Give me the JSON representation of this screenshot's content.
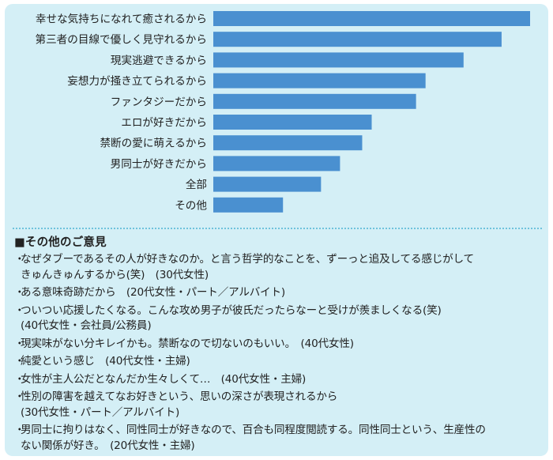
{
  "chart_data": {
    "type": "bar",
    "orientation": "horizontal",
    "categories": [
      "幸せな気持ちになれて癒されるから",
      "第三者の目線で優しく見守れるから",
      "現実逃避できるから",
      "妄想力が掻き立てられるから",
      "ファンタジーだから",
      "エロが好きだから",
      "禁断の愛に萌えるから",
      "男同士が好きだから",
      "全部",
      "その他"
    ],
    "values": [
      100,
      91,
      79,
      67,
      64,
      50,
      47,
      40,
      34,
      22
    ],
    "xlim": [
      0,
      100
    ],
    "bar_color": "#4a90d0",
    "grid": false,
    "legend": "none"
  },
  "opinions": {
    "title": "■その他のご意見",
    "bullet": "・",
    "items": [
      "なぜタブーであるその人が好きなのか。と言う哲学的なことを、ずーっと追及してる感じがして\nきゅんきゅんするから(笑)　(30代女性)",
      "ある意味奇跡だから　(20代女性・パート／アルバイト)",
      "ついつい応援したくなる。こんな攻め男子が彼氏だったらなーと受けが羨ましくなる(笑)\n(40代女性・会社員/公務員)",
      "現実味がない分キレイかも。禁断なので切ないのもいい。　(40代女性)",
      "純愛という感じ　(40代女性・主婦)",
      "女性が主人公だとなんだか生々しくて…　(40代女性・主婦)",
      "性別の障害を越えてなお好きという、思いの深さが表現されるから\n(30代女性・パート／アルバイト)",
      "男同士に拘りはなく、同性同士が好きなので、百合も同程度閲読する。同性同士という、生産性の\nない関係が好き。　(20代女性・主婦)"
    ]
  },
  "colors": {
    "panel_background": "#d4eff6",
    "divider": "#6fc3dc",
    "bar": "#4a90d0"
  }
}
